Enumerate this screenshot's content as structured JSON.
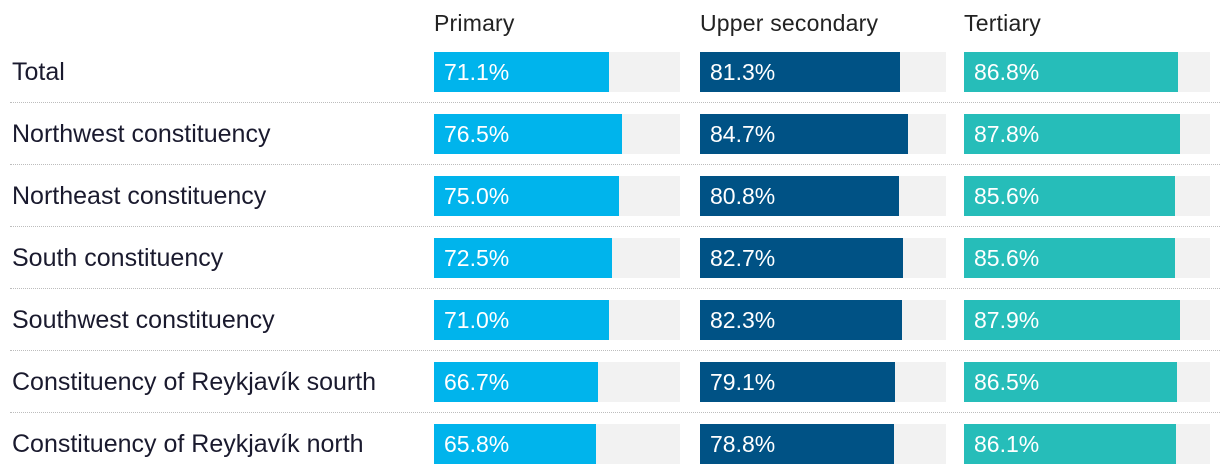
{
  "chart_data": {
    "type": "bar",
    "orientation": "horizontal",
    "layout": "small-multiples",
    "columns": [
      {
        "name": "Primary",
        "color": "#00b4ec"
      },
      {
        "name": "Upper secondary",
        "color": "#005285"
      },
      {
        "name": "Tertiary",
        "color": "#26bdb9"
      }
    ],
    "xlim": [
      0,
      100
    ],
    "categories": [
      "Total",
      "Northwest constituency",
      "Northeast constituency",
      "South constituency",
      "Southwest constituency",
      "Constituency of Reykjavík sourth",
      "Constituency of Reykjavík north"
    ],
    "series": [
      {
        "name": "Primary",
        "values": [
          71.1,
          76.5,
          75.0,
          72.5,
          71.0,
          66.7,
          65.8
        ]
      },
      {
        "name": "Upper secondary",
        "values": [
          81.3,
          84.7,
          80.8,
          82.7,
          82.3,
          79.1,
          78.8
        ]
      },
      {
        "name": "Tertiary",
        "values": [
          86.8,
          87.8,
          85.6,
          85.6,
          87.9,
          86.5,
          86.1
        ]
      }
    ],
    "labels": [
      [
        "71.1%",
        "76.5%",
        "75.0%",
        "72.5%",
        "71.0%",
        "66.7%",
        "65.8%"
      ],
      [
        "81.3%",
        "84.7%",
        "80.8%",
        "82.7%",
        "82.3%",
        "79.1%",
        "78.8%"
      ],
      [
        "86.8%",
        "87.8%",
        "85.6%",
        "85.6%",
        "87.9%",
        "86.5%",
        "86.1%"
      ]
    ]
  }
}
